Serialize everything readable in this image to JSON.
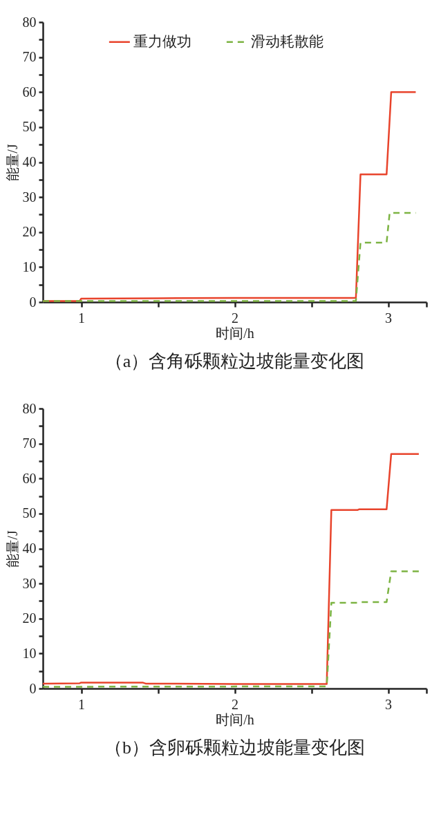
{
  "chart_data": [
    {
      "type": "line",
      "xlabel": "时间/h",
      "ylabel": "能量/J",
      "xlim": [
        0.75,
        3.25
      ],
      "ylim": [
        0,
        80
      ],
      "xticks": [
        {
          "value": 1.5,
          "label": null
        },
        1,
        2,
        {
          "value": 2.5,
          "label": null
        },
        3,
        {
          "value": 3.25,
          "label": null
        }
      ],
      "yticks": [
        0,
        {
          "value": 5,
          "label": null
        },
        10,
        {
          "value": 15,
          "label": null
        },
        20,
        {
          "value": 25,
          "label": null
        },
        30,
        {
          "value": 35,
          "label": null
        },
        40,
        {
          "value": 45,
          "label": null
        },
        50,
        {
          "value": 55,
          "label": null
        },
        60,
        {
          "value": 65,
          "label": null
        },
        70,
        {
          "value": 75,
          "label": null
        },
        80
      ],
      "grid": false,
      "legend": "top",
      "annotations": [
        "（a）含角砾颗粒边坡能量变化图"
      ],
      "series": [
        {
          "name": "重力做功",
          "color": "#e8432b",
          "line_style": "solid",
          "x": [
            0.75,
            0.99,
            1.0,
            1.5,
            2.0,
            2.5,
            2.79,
            2.82,
            2.99,
            3.02,
            3.18
          ],
          "values": [
            0.3,
            0.3,
            1.0,
            1.1,
            1.2,
            1.2,
            1.2,
            36.5,
            36.5,
            60,
            60
          ]
        },
        {
          "name": "滑动耗散能",
          "color": "#7cb342",
          "line_style": "dashed",
          "x": [
            0.75,
            2.79,
            2.82,
            2.99,
            3.01,
            3.18
          ],
          "values": [
            0.3,
            0.3,
            17,
            17,
            25.5,
            25.5
          ]
        }
      ]
    },
    {
      "type": "line",
      "xlabel": "时间/h",
      "ylabel": "能量/J",
      "xlim": [
        0.75,
        3.25
      ],
      "ylim": [
        0,
        80
      ],
      "xticks": [
        {
          "value": 1.5,
          "label": null
        },
        1,
        2,
        {
          "value": 2.5,
          "label": null
        },
        3,
        {
          "value": 3.25,
          "label": null
        }
      ],
      "yticks": [
        0,
        {
          "value": 5,
          "label": null
        },
        10,
        {
          "value": 15,
          "label": null
        },
        20,
        {
          "value": 25,
          "label": null
        },
        30,
        {
          "value": 35,
          "label": null
        },
        40,
        {
          "value": 45,
          "label": null
        },
        50,
        {
          "value": 55,
          "label": null
        },
        60,
        {
          "value": 65,
          "label": null
        },
        70,
        {
          "value": 75,
          "label": null
        },
        80
      ],
      "grid": false,
      "legend": "top",
      "annotations": [
        "（b）含卵砾颗粒边坡能量变化图"
      ],
      "series": [
        {
          "name": "重力做功",
          "color": "#e8432b",
          "line_style": "solid",
          "x": [
            0.75,
            0.99,
            1.0,
            1.4,
            1.42,
            2.0,
            2.6,
            2.63,
            2.8,
            2.81,
            2.99,
            3.02,
            3.2
          ],
          "values": [
            1.4,
            1.5,
            1.7,
            1.7,
            1.4,
            1.3,
            1.3,
            51,
            51,
            51.2,
            51.2,
            67,
            67
          ]
        },
        {
          "name": "滑动耗散能",
          "color": "#7cb342",
          "line_style": "dashed",
          "x": [
            0.75,
            2.6,
            2.63,
            2.8,
            2.81,
            2.99,
            3.02,
            3.2
          ],
          "values": [
            0.5,
            0.6,
            24.5,
            24.5,
            24.7,
            24.7,
            33.5,
            33.5
          ]
        }
      ]
    }
  ]
}
